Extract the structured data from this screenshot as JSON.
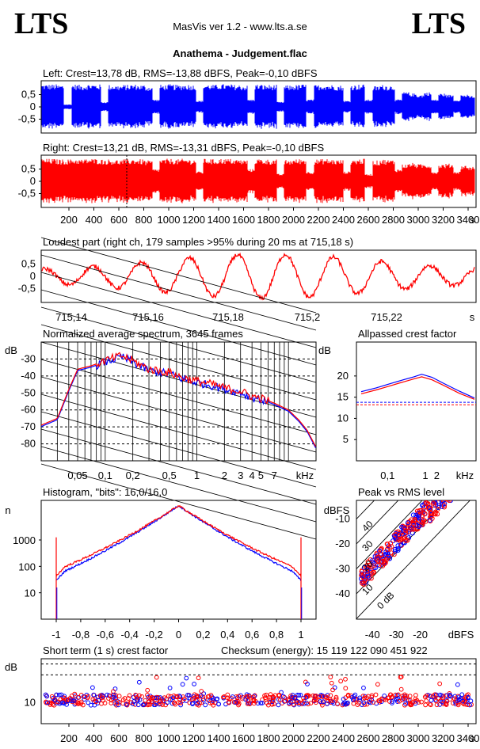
{
  "header": {
    "logo_left": "LTS",
    "logo_right": "LTS",
    "app_title": "MasVis ver 1.2 - www.lts.a.se",
    "file_title": "Anathema - Judgement.flac"
  },
  "colors": {
    "left": "#0000ff",
    "right": "#ff0000",
    "grid": "#000000"
  },
  "chart_data": [
    {
      "id": "left",
      "type": "line",
      "title": "Left: Crest=13,78 dB, RMS=-13,88 dBFS, Peak=-0,10 dBFS",
      "ylabel_ticks": [
        "0,5",
        "0",
        "-0,5"
      ],
      "ylim": [
        -1,
        1
      ],
      "envelope": [
        0.92,
        0.92,
        0.9,
        0.1,
        0.92,
        0.9,
        0.93,
        0.92,
        0.2,
        0.9,
        0.88,
        0.9,
        0.92,
        0.9,
        0.85,
        0.3,
        0.9,
        0.92,
        0.9,
        0.92,
        0.9,
        0.25,
        0.92,
        0.9,
        0.93,
        0.92,
        0.9,
        0.88,
        0.3,
        0.92,
        0.9,
        0.9,
        0.2,
        0.88,
        0.9,
        0.92,
        0.3,
        0.9,
        0.92,
        0.9,
        0.88,
        0.25,
        0.9,
        0.92,
        0.3,
        0.85,
        0.9,
        0.88,
        0.3,
        0.6,
        0.55,
        0.5,
        0.6,
        0.3,
        0.55,
        0.5,
        0.3,
        0.5,
        0.45
      ]
    },
    {
      "id": "right",
      "type": "line",
      "title": "Right: Crest=13,21 dB, RMS=-13,31 dBFS, Peak=-0,10 dBFS",
      "ylabel_ticks": [
        "0,5",
        "0",
        "-0,5"
      ],
      "ylim": [
        -1,
        1
      ],
      "xticks": [
        "200",
        "400",
        "600",
        "800",
        "1000",
        "1200",
        "1400",
        "1600",
        "1800",
        "2000",
        "2200",
        "2400",
        "2600",
        "2800",
        "3000",
        "3200",
        "3400",
        "s"
      ],
      "envelope": [
        0.92,
        0.92,
        0.9,
        0.9,
        0.92,
        0.9,
        0.93,
        0.92,
        0.9,
        0.9,
        0.88,
        0.9,
        0.92,
        0.9,
        0.85,
        0.5,
        0.9,
        0.92,
        0.9,
        0.92,
        0.9,
        0.4,
        0.92,
        0.9,
        0.93,
        0.92,
        0.9,
        0.88,
        0.5,
        0.92,
        0.9,
        0.9,
        0.3,
        0.88,
        0.9,
        0.92,
        0.4,
        0.9,
        0.92,
        0.9,
        0.88,
        0.4,
        0.9,
        0.92,
        0.3,
        0.85,
        0.9,
        0.88,
        0.5,
        0.7,
        0.75,
        0.7,
        0.7,
        0.4,
        0.7,
        0.72,
        0.4,
        0.65,
        0.6
      ]
    },
    {
      "id": "loudest",
      "type": "line",
      "title": "Loudest part (right ch, 179 samples >95% during 20 ms at 715,18 s)",
      "ylabel_ticks": [
        "0,5",
        "0",
        "-0,5"
      ],
      "xticks": [
        "715,14",
        "715,16",
        "715,18",
        "715,2",
        "715,22",
        "s"
      ],
      "xlim": [
        715.133,
        715.233
      ]
    },
    {
      "id": "spectrum",
      "type": "line",
      "title": "Normalized average spectrum, 3645 frames",
      "ylabel": "dB",
      "yticks": [
        "-30",
        "-40",
        "-50",
        "-60",
        "-70",
        "-80"
      ],
      "xticks": [
        "0,05",
        "0,1",
        "0,2",
        "0,5",
        "1",
        "2",
        "3",
        "4",
        "5",
        "7",
        "kHz"
      ],
      "x_khz": [
        0.02,
        0.03,
        0.04,
        0.05,
        0.07,
        0.1,
        0.15,
        0.2,
        0.3,
        0.5,
        0.7,
        1,
        1.5,
        2,
        3,
        4,
        5,
        7,
        10,
        13,
        16,
        20
      ],
      "y_db": [
        -69,
        -65,
        -48,
        -36,
        -34,
        -31,
        -28,
        -31,
        -36,
        -38,
        -41,
        -43,
        -45,
        -47,
        -49,
        -52,
        -53,
        -56,
        -60,
        -66,
        -72,
        -82
      ]
    },
    {
      "id": "crest",
      "type": "line",
      "title": "Allpassed crest factor",
      "ylabel": "dB",
      "yticks": [
        "20",
        "15",
        "10",
        "5"
      ],
      "xticks": [
        "0,1",
        "1",
        "2",
        "kHz"
      ],
      "series": [
        {
          "name": "left",
          "x_khz": [
            0.02,
            0.05,
            0.1,
            0.2,
            0.5,
            0.8,
            1.5,
            3,
            8,
            20
          ],
          "y_db": [
            16.3,
            17.2,
            18.0,
            18.8,
            19.8,
            20.4,
            19.7,
            18.3,
            16.4,
            14.8
          ],
          "ref": 13.8
        },
        {
          "name": "right",
          "x_khz": [
            0.02,
            0.05,
            0.1,
            0.2,
            0.5,
            0.8,
            1.5,
            3,
            8,
            20
          ],
          "y_db": [
            15.8,
            16.7,
            17.5,
            18.3,
            19.3,
            19.8,
            19.1,
            17.8,
            15.9,
            14.5
          ],
          "ref": 13.2
        }
      ]
    },
    {
      "id": "histogram",
      "type": "line",
      "title": "Histogram, \"bits\": 16,0/16,0",
      "ylabel": "n",
      "yticks": [
        "1000",
        "100",
        "10"
      ],
      "xticks": [
        "-1",
        "-0,8",
        "-0,6",
        "-0,4",
        "-0,2",
        "0",
        "0,2",
        "0,4",
        "0,6",
        "0,8",
        "1"
      ]
    },
    {
      "id": "peakrms",
      "type": "scatter",
      "title": "Peak vs RMS level",
      "ylabel": "dBFS",
      "yticks": [
        "-10",
        "-20",
        "-30",
        "-40"
      ],
      "xticks": [
        "-40",
        "-30",
        "-20",
        "dBFS"
      ],
      "diag_labels": [
        "40",
        "30",
        "20",
        "10",
        "0 dB"
      ]
    },
    {
      "id": "shortcrest",
      "type": "scatter",
      "title": "Short term (1 s) crest factor",
      "checksum_label": "Checksum (energy):  15 119 122 090 451 922",
      "ylabel": "dB",
      "yticks": [
        "10"
      ],
      "xticks": [
        "200",
        "400",
        "600",
        "800",
        "1000",
        "1200",
        "1400",
        "1600",
        "1800",
        "2000",
        "2200",
        "2400",
        "2600",
        "2800",
        "3000",
        "3200",
        "3400",
        "s"
      ]
    }
  ]
}
